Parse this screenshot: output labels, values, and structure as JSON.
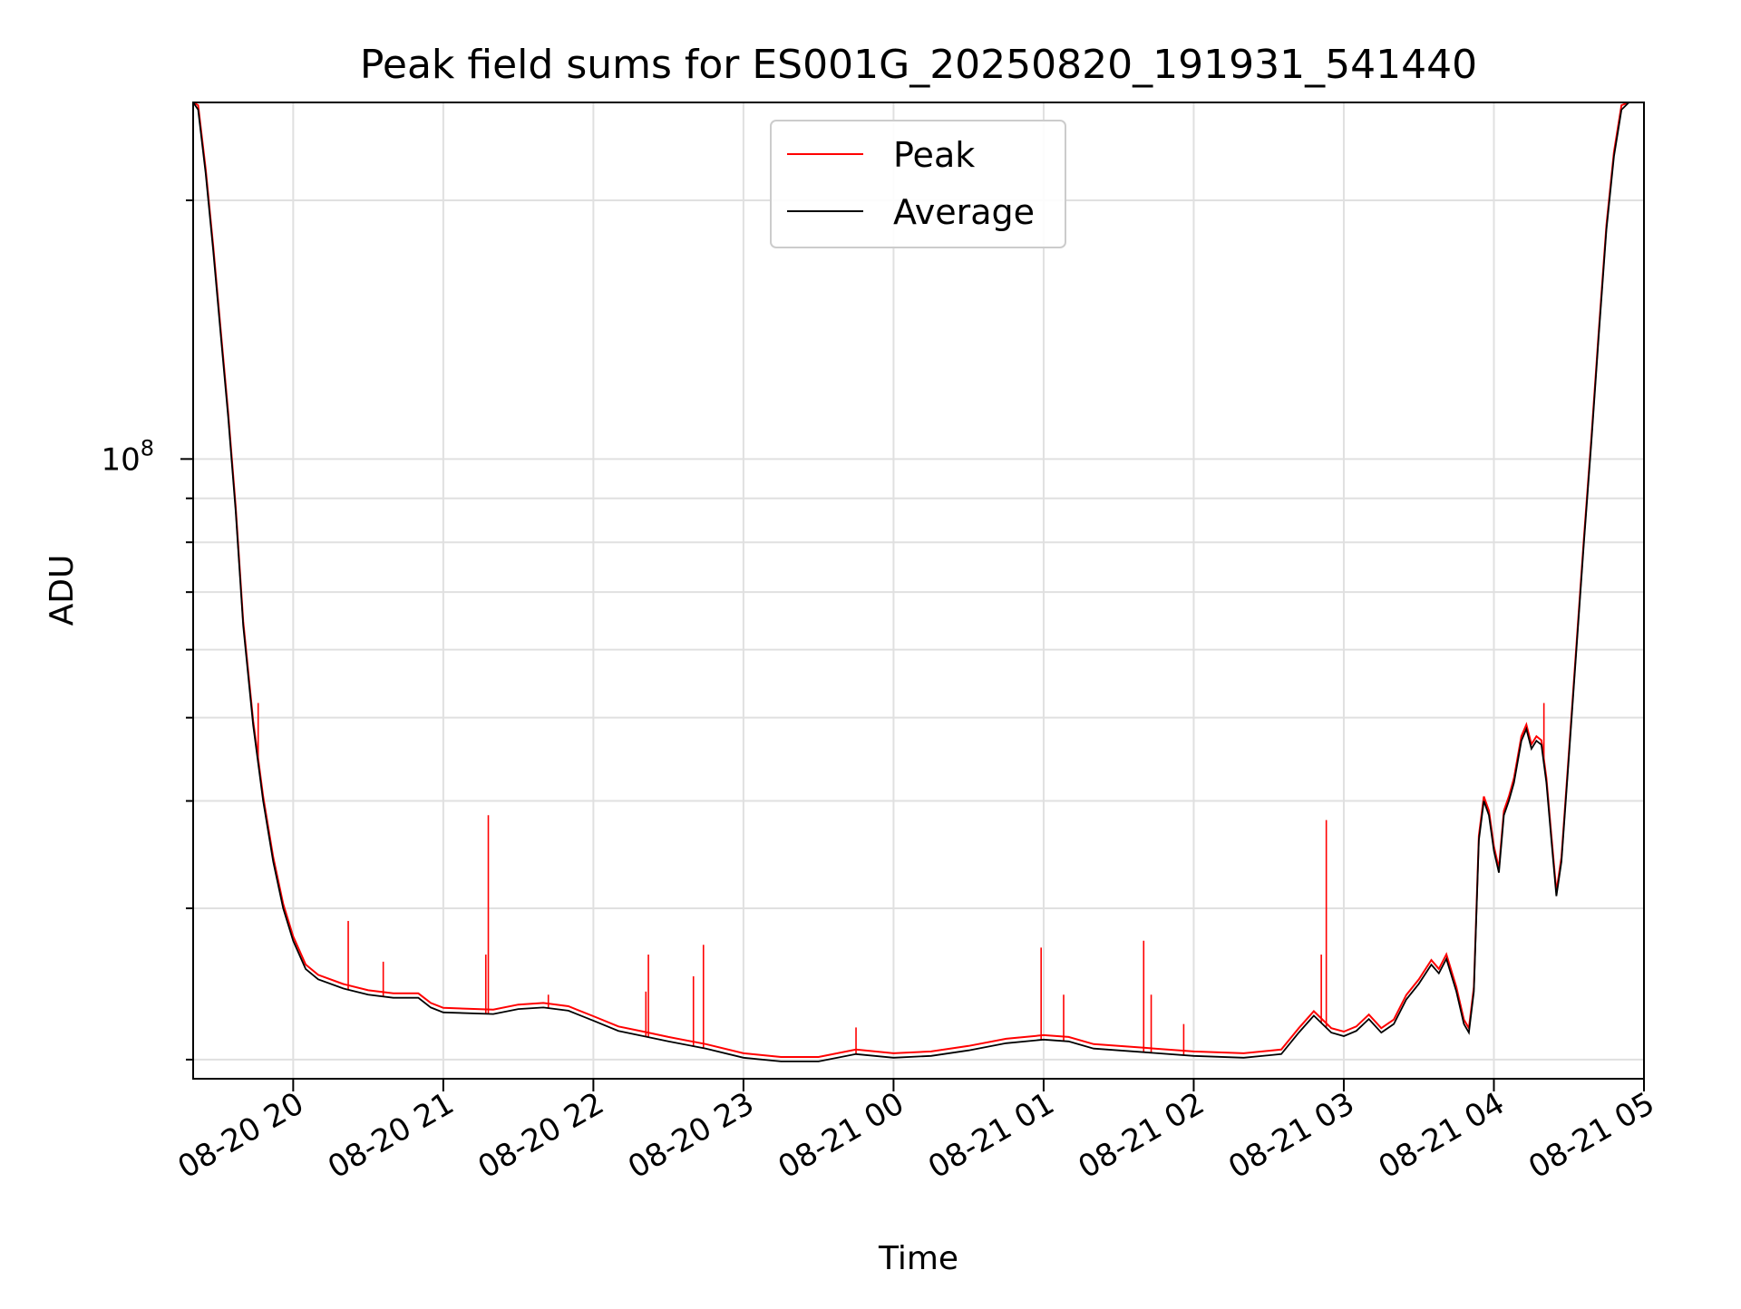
{
  "chart_data": {
    "type": "line",
    "title": "Peak field sums for ES001G_20250820_191931_541440",
    "xlabel": "Time",
    "ylabel": "ADU",
    "y_scale": "log",
    "grid": true,
    "legend_position": "top-center",
    "colors": {
      "Peak": "#ff0000",
      "Average": "#000000"
    },
    "ytick_labels": [
      {
        "value": 100000000,
        "base": "10",
        "exp": "8"
      }
    ],
    "y_minor_ticks": [
      20000000,
      30000000,
      40000000,
      50000000,
      60000000,
      70000000,
      80000000,
      90000000,
      200000000
    ],
    "ylim": [
      19000000,
      260000000
    ],
    "xlim": [
      "2025-08-20 19:20",
      "2025-08-21 05:00"
    ],
    "xticks": [
      {
        "t": "2025-08-20 20:00",
        "label": "08-20 20"
      },
      {
        "t": "2025-08-20 21:00",
        "label": "08-20 21"
      },
      {
        "t": "2025-08-20 22:00",
        "label": "08-20 22"
      },
      {
        "t": "2025-08-20 23:00",
        "label": "08-20 23"
      },
      {
        "t": "2025-08-21 00:00",
        "label": "08-21 00"
      },
      {
        "t": "2025-08-21 01:00",
        "label": "08-21 01"
      },
      {
        "t": "2025-08-21 02:00",
        "label": "08-21 02"
      },
      {
        "t": "2025-08-21 03:00",
        "label": "08-21 03"
      },
      {
        "t": "2025-08-21 04:00",
        "label": "08-21 04"
      },
      {
        "t": "2025-08-21 05:00",
        "label": "08-21 05"
      }
    ],
    "series": [
      {
        "name": "Average",
        "points": [
          [
            "2025-08-20 19:20",
            270000000
          ],
          [
            "2025-08-20 19:22",
            255000000
          ],
          [
            "2025-08-20 19:25",
            215000000
          ],
          [
            "2025-08-20 19:28",
            175000000
          ],
          [
            "2025-08-20 19:31",
            140000000
          ],
          [
            "2025-08-20 19:34",
            112000000
          ],
          [
            "2025-08-20 19:37",
            87000000
          ],
          [
            "2025-08-20 19:40",
            64000000
          ],
          [
            "2025-08-20 19:44",
            49000000
          ],
          [
            "2025-08-20 19:48",
            40000000
          ],
          [
            "2025-08-20 19:52",
            34000000
          ],
          [
            "2025-08-20 19:56",
            30000000
          ],
          [
            "2025-08-20 20:00",
            27500000
          ],
          [
            "2025-08-20 20:05",
            25500000
          ],
          [
            "2025-08-20 20:10",
            24800000
          ],
          [
            "2025-08-20 20:20",
            24200000
          ],
          [
            "2025-08-20 20:30",
            23800000
          ],
          [
            "2025-08-20 20:40",
            23600000
          ],
          [
            "2025-08-20 20:50",
            23600000
          ],
          [
            "2025-08-20 20:55",
            23000000
          ],
          [
            "2025-08-20 21:00",
            22700000
          ],
          [
            "2025-08-20 21:20",
            22600000
          ],
          [
            "2025-08-20 21:30",
            22900000
          ],
          [
            "2025-08-20 21:40",
            23000000
          ],
          [
            "2025-08-20 21:50",
            22800000
          ],
          [
            "2025-08-20 22:00",
            22200000
          ],
          [
            "2025-08-20 22:10",
            21600000
          ],
          [
            "2025-08-20 22:20",
            21300000
          ],
          [
            "2025-08-20 22:30",
            21000000
          ],
          [
            "2025-08-20 22:45",
            20600000
          ],
          [
            "2025-08-20 23:00",
            20100000
          ],
          [
            "2025-08-20 23:15",
            19900000
          ],
          [
            "2025-08-20 23:30",
            19900000
          ],
          [
            "2025-08-20 23:45",
            20300000
          ],
          [
            "2025-08-21 00:00",
            20100000
          ],
          [
            "2025-08-21 00:15",
            20200000
          ],
          [
            "2025-08-21 00:30",
            20500000
          ],
          [
            "2025-08-21 00:45",
            20900000
          ],
          [
            "2025-08-21 01:00",
            21100000
          ],
          [
            "2025-08-21 01:10",
            21000000
          ],
          [
            "2025-08-21 01:20",
            20600000
          ],
          [
            "2025-08-21 01:40",
            20400000
          ],
          [
            "2025-08-21 02:00",
            20200000
          ],
          [
            "2025-08-21 02:20",
            20100000
          ],
          [
            "2025-08-21 02:35",
            20300000
          ],
          [
            "2025-08-21 02:42",
            21500000
          ],
          [
            "2025-08-21 02:48",
            22500000
          ],
          [
            "2025-08-21 02:55",
            21500000
          ],
          [
            "2025-08-21 03:00",
            21300000
          ],
          [
            "2025-08-21 03:05",
            21600000
          ],
          [
            "2025-08-21 03:10",
            22300000
          ],
          [
            "2025-08-21 03:15",
            21500000
          ],
          [
            "2025-08-21 03:20",
            22000000
          ],
          [
            "2025-08-21 03:25",
            23500000
          ],
          [
            "2025-08-21 03:30",
            24500000
          ],
          [
            "2025-08-21 03:35",
            25800000
          ],
          [
            "2025-08-21 03:38",
            25200000
          ],
          [
            "2025-08-21 03:41",
            26200000
          ],
          [
            "2025-08-21 03:45",
            24000000
          ],
          [
            "2025-08-21 03:48",
            22000000
          ],
          [
            "2025-08-21 03:50",
            21500000
          ],
          [
            "2025-08-21 03:52",
            24000000
          ],
          [
            "2025-08-21 03:54",
            36000000
          ],
          [
            "2025-08-21 03:56",
            40000000
          ],
          [
            "2025-08-21 03:58",
            38500000
          ],
          [
            "2025-08-21 04:00",
            35000000
          ],
          [
            "2025-08-21 04:02",
            33000000
          ],
          [
            "2025-08-21 04:04",
            38500000
          ],
          [
            "2025-08-21 04:06",
            40000000
          ],
          [
            "2025-08-21 04:08",
            42000000
          ],
          [
            "2025-08-21 04:11",
            47000000
          ],
          [
            "2025-08-21 04:13",
            48500000
          ],
          [
            "2025-08-21 04:15",
            46000000
          ],
          [
            "2025-08-21 04:17",
            47000000
          ],
          [
            "2025-08-21 04:19",
            46500000
          ],
          [
            "2025-08-21 04:21",
            42000000
          ],
          [
            "2025-08-21 04:23",
            36000000
          ],
          [
            "2025-08-21 04:25",
            31000000
          ],
          [
            "2025-08-21 04:27",
            34000000
          ],
          [
            "2025-08-21 04:30",
            45000000
          ],
          [
            "2025-08-21 04:33",
            60000000
          ],
          [
            "2025-08-21 04:36",
            80000000
          ],
          [
            "2025-08-21 04:39",
            105000000
          ],
          [
            "2025-08-21 04:42",
            140000000
          ],
          [
            "2025-08-21 04:45",
            185000000
          ],
          [
            "2025-08-21 04:48",
            225000000
          ],
          [
            "2025-08-21 04:51",
            255000000
          ],
          [
            "2025-08-21 04:54",
            270000000
          ],
          [
            "2025-08-21 05:00",
            270000000
          ]
        ]
      },
      {
        "name": "Peak",
        "spikes": [
          [
            "2025-08-20 19:46",
            52000000
          ],
          [
            "2025-08-20 20:22",
            29000000
          ],
          [
            "2025-08-20 20:36",
            26000000
          ],
          [
            "2025-08-20 21:17",
            26500000
          ],
          [
            "2025-08-20 21:18",
            38500000
          ],
          [
            "2025-08-20 21:42",
            23800000
          ],
          [
            "2025-08-20 22:21",
            24000000
          ],
          [
            "2025-08-20 22:22",
            26500000
          ],
          [
            "2025-08-20 22:40",
            25000000
          ],
          [
            "2025-08-20 22:44",
            27200000
          ],
          [
            "2025-08-20 23:45",
            21800000
          ],
          [
            "2025-08-21 00:59",
            27000000
          ],
          [
            "2025-08-21 01:08",
            23800000
          ],
          [
            "2025-08-21 01:40",
            27500000
          ],
          [
            "2025-08-21 01:43",
            23800000
          ],
          [
            "2025-08-21 01:56",
            22000000
          ],
          [
            "2025-08-21 02:51",
            26500000
          ],
          [
            "2025-08-21 02:53",
            38000000
          ],
          [
            "2025-08-21 04:20",
            52000000
          ]
        ]
      }
    ]
  }
}
